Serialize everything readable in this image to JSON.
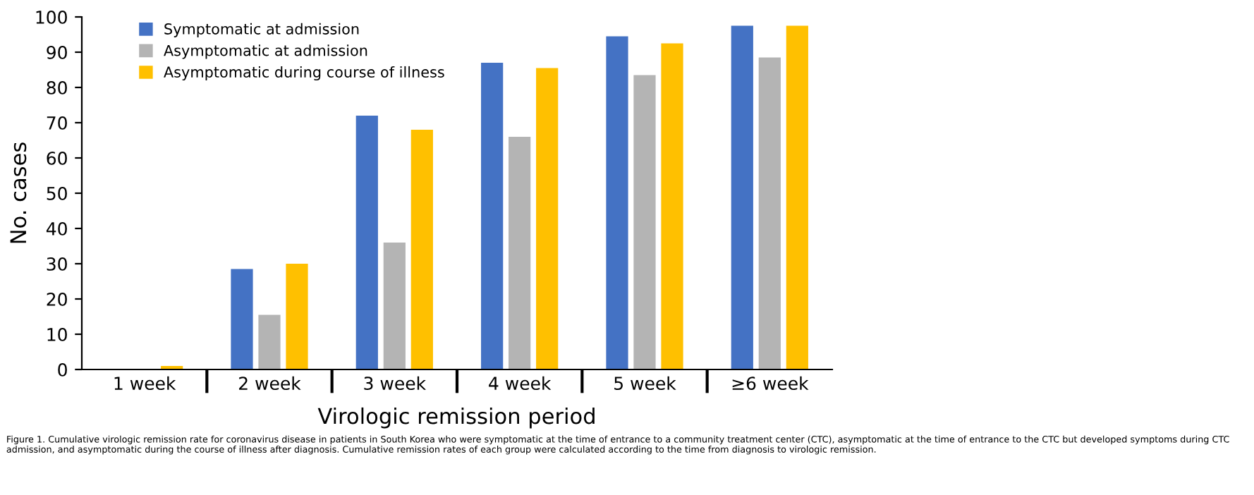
{
  "chart_data": {
    "type": "bar",
    "xlabel": "Virologic remission period",
    "ylabel": "No. cases",
    "categories": [
      "1 week",
      "2 week",
      "3 week",
      "4 week",
      "5 week",
      "≥6 week"
    ],
    "series": [
      {
        "name": "Symptomatic at admission",
        "color": "#4472c4",
        "values": [
          0,
          28.5,
          72,
          87,
          94.5,
          97.5
        ]
      },
      {
        "name": "Asymptomatic at admission",
        "color": "#b4b4b4",
        "values": [
          0,
          15.5,
          36,
          66,
          83.5,
          88.5
        ]
      },
      {
        "name": "Asymptomatic during course of illness",
        "color": "#ffc000",
        "values": [
          1,
          30,
          68,
          85.5,
          92.5,
          97.5
        ]
      }
    ],
    "ylim": [
      0,
      100
    ],
    "yticks": [
      0,
      10,
      20,
      30,
      40,
      50,
      60,
      70,
      80,
      90,
      100
    ],
    "grid": false,
    "legend": "top left",
    "annotations": [
      "Figure 1. Cumulative virologic remission rate for coronavirus disease in patients in South Korea who were symptomatic at the time of entrance to a community treatment center (CTC), asymptomatic at the time of entrance to the CTC but developed symptoms during CTC admission, and asymptomatic during the course of illness after diagnosis. Cumulative remission rates of each group were calculated according to the time from diagnosis to virologic remission."
    ]
  }
}
